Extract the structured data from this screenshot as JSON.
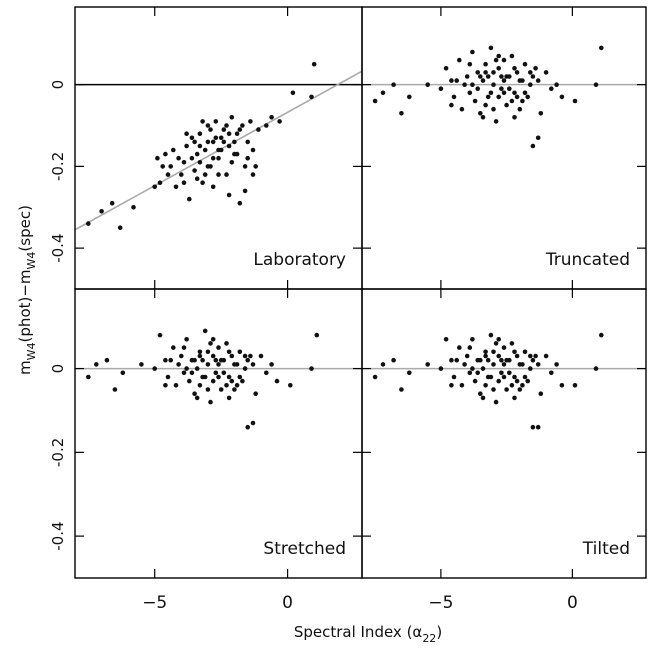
{
  "figure": {
    "xlabel": "Spectral Index (α",
    "xlabel_sub": "22",
    "xlabel_close": ")",
    "ylabel_parts": [
      "m",
      "W4",
      "(phot)−m",
      "W4",
      "(spec)"
    ]
  },
  "chart_data": [
    {
      "type": "scatter",
      "panel": "Laboratory",
      "label": "Laboratory",
      "xlim": [
        -8,
        2.8
      ],
      "ylim": [
        -0.5,
        0.19
      ],
      "xticks": [],
      "yticks": [
        0,
        -0.2,
        -0.4
      ],
      "ytick_labels": [
        "0",
        "-0.2",
        "-0.4"
      ],
      "hline": {
        "y": 0,
        "color": "#000000"
      },
      "fit_line": {
        "x": [
          -8,
          2.8
        ],
        "y": [
          -0.355,
          0.033
        ],
        "color": "#aaaaaa"
      },
      "points": [
        [
          -7.5,
          -0.34
        ],
        [
          -7.0,
          -0.31
        ],
        [
          -6.6,
          -0.29
        ],
        [
          -6.3,
          -0.35
        ],
        [
          -5.8,
          -0.3
        ],
        [
          -5.0,
          -0.25
        ],
        [
          -4.8,
          -0.24
        ],
        [
          -4.7,
          -0.2
        ],
        [
          -4.9,
          -0.18
        ],
        [
          -4.5,
          -0.22
        ],
        [
          -4.3,
          -0.16
        ],
        [
          -4.2,
          -0.25
        ],
        [
          -4.0,
          -0.22
        ],
        [
          -3.9,
          -0.19
        ],
        [
          -3.8,
          -0.15
        ],
        [
          -3.7,
          -0.28
        ],
        [
          -3.6,
          -0.13
        ],
        [
          -3.5,
          -0.21
        ],
        [
          -3.4,
          -0.17
        ],
        [
          -3.3,
          -0.12
        ],
        [
          -3.2,
          -0.24
        ],
        [
          -3.1,
          -0.16
        ],
        [
          -3.0,
          -0.1
        ],
        [
          -2.9,
          -0.2
        ],
        [
          -2.8,
          -0.14
        ],
        [
          -2.7,
          -0.09
        ],
        [
          -2.6,
          -0.18
        ],
        [
          -2.5,
          -0.13
        ],
        [
          -2.4,
          -0.11
        ],
        [
          -2.3,
          -0.22
        ],
        [
          -2.2,
          -0.15
        ],
        [
          -2.1,
          -0.08
        ],
        [
          -2.0,
          -0.17
        ],
        [
          -1.9,
          -0.12
        ],
        [
          -1.8,
          -0.29
        ],
        [
          -1.7,
          -0.1
        ],
        [
          -1.6,
          -0.26
        ],
        [
          -1.5,
          -0.14
        ],
        [
          -1.4,
          -0.09
        ],
        [
          -1.3,
          -0.16
        ],
        [
          -1.2,
          -0.2
        ],
        [
          -1.1,
          -0.11
        ],
        [
          -0.8,
          -0.1
        ],
        [
          -0.6,
          -0.08
        ],
        [
          -0.3,
          -0.09
        ],
        [
          0.2,
          -0.02
        ],
        [
          0.9,
          -0.03
        ],
        [
          1.0,
          0.05
        ],
        [
          -3.0,
          -0.14
        ],
        [
          -2.8,
          -0.18
        ],
        [
          -3.5,
          -0.14
        ],
        [
          -4.1,
          -0.18
        ],
        [
          -3.3,
          -0.19
        ],
        [
          -2.5,
          -0.16
        ],
        [
          -2.2,
          -0.12
        ],
        [
          -2.6,
          -0.22
        ],
        [
          -3.9,
          -0.24
        ],
        [
          -1.6,
          -0.2
        ],
        [
          -2.9,
          -0.11
        ],
        [
          -3.2,
          -0.09
        ],
        [
          -1.9,
          -0.17
        ],
        [
          -2.4,
          -0.14
        ],
        [
          -3.6,
          -0.18
        ],
        [
          -4.4,
          -0.2
        ],
        [
          -2.7,
          -0.13
        ],
        [
          -2.1,
          -0.19
        ],
        [
          -3.8,
          -0.12
        ],
        [
          -1.5,
          -0.18
        ],
        [
          -2.3,
          -0.1
        ],
        [
          -3.1,
          -0.22
        ],
        [
          -2.0,
          -0.14
        ],
        [
          -3.4,
          -0.23
        ],
        [
          -1.8,
          -0.11
        ],
        [
          -2.8,
          -0.25
        ],
        [
          -3.0,
          -0.2
        ],
        [
          -3.3,
          -0.15
        ],
        [
          -2.6,
          -0.16
        ],
        [
          -4.6,
          -0.17
        ],
        [
          -1.3,
          -0.22
        ],
        [
          -2.2,
          -0.27
        ]
      ]
    },
    {
      "type": "scatter",
      "panel": "Truncated",
      "label": "Truncated",
      "xlim": [
        -8,
        2.8
      ],
      "ylim": [
        -0.5,
        0.19
      ],
      "xticks": [],
      "yticks": [
        0,
        -0.2,
        -0.4
      ],
      "ytick_labels": [],
      "hline": {
        "y": 0,
        "color": "#aaaaaa"
      },
      "points": [
        [
          -7.5,
          -0.04
        ],
        [
          -7.2,
          -0.02
        ],
        [
          -6.8,
          0.0
        ],
        [
          -6.5,
          -0.07
        ],
        [
          -6.2,
          -0.03
        ],
        [
          -5.5,
          0.0
        ],
        [
          -5.0,
          -0.01
        ],
        [
          -4.8,
          0.04
        ],
        [
          -4.6,
          0.01
        ],
        [
          -4.5,
          -0.03
        ],
        [
          -4.3,
          0.06
        ],
        [
          -4.2,
          -0.06
        ],
        [
          -4.0,
          0.02
        ],
        [
          -3.9,
          -0.02
        ],
        [
          -3.8,
          0.08
        ],
        [
          -3.7,
          -0.04
        ],
        [
          -3.6,
          0.03
        ],
        [
          -3.5,
          -0.07
        ],
        [
          -3.4,
          0.01
        ],
        [
          -3.3,
          0.05
        ],
        [
          -3.2,
          -0.03
        ],
        [
          -3.1,
          0.09
        ],
        [
          -3.0,
          0.0
        ],
        [
          -2.9,
          -0.09
        ],
        [
          -2.8,
          0.04
        ],
        [
          -2.7,
          -0.01
        ],
        [
          -2.6,
          0.06
        ],
        [
          -2.5,
          -0.05
        ],
        [
          -2.4,
          0.02
        ],
        [
          -2.3,
          0.07
        ],
        [
          -2.2,
          -0.02
        ],
        [
          -2.1,
          0.03
        ],
        [
          -2.0,
          -0.06
        ],
        [
          -1.9,
          0.01
        ],
        [
          -1.8,
          0.05
        ],
        [
          -1.7,
          -0.03
        ],
        [
          -1.6,
          0.0
        ],
        [
          -1.5,
          -0.15
        ],
        [
          -1.4,
          0.04
        ],
        [
          -1.3,
          -0.13
        ],
        [
          -1.2,
          -0.07
        ],
        [
          -1.0,
          0.03
        ],
        [
          -0.8,
          -0.01
        ],
        [
          -0.6,
          0.0
        ],
        [
          -0.4,
          -0.03
        ],
        [
          0.1,
          -0.04
        ],
        [
          0.9,
          0.0
        ],
        [
          1.1,
          0.09
        ],
        [
          -3.0,
          0.03
        ],
        [
          -2.8,
          -0.03
        ],
        [
          -3.5,
          0.02
        ],
        [
          -4.1,
          0.0
        ],
        [
          -3.3,
          -0.05
        ],
        [
          -2.5,
          0.02
        ],
        [
          -2.2,
          0.04
        ],
        [
          -2.6,
          -0.02
        ],
        [
          -3.9,
          0.05
        ],
        [
          -1.6,
          0.03
        ],
        [
          -2.9,
          0.06
        ],
        [
          -3.2,
          0.02
        ],
        [
          -1.9,
          -0.04
        ],
        [
          -2.4,
          -0.01
        ],
        [
          -3.6,
          -0.01
        ],
        [
          -4.4,
          0.01
        ],
        [
          -2.7,
          0.02
        ],
        [
          -2.1,
          -0.03
        ],
        [
          -3.8,
          0.0
        ],
        [
          -1.5,
          0.02
        ],
        [
          -2.3,
          -0.04
        ],
        [
          -3.1,
          -0.02
        ],
        [
          -2.0,
          0.01
        ],
        [
          -3.4,
          -0.08
        ],
        [
          -1.8,
          -0.02
        ],
        [
          -2.8,
          0.07
        ],
        [
          -3.0,
          -0.06
        ],
        [
          -3.3,
          0.03
        ],
        [
          -2.6,
          0.01
        ],
        [
          -4.6,
          -0.05
        ],
        [
          -1.3,
          0.01
        ],
        [
          -2.2,
          -0.08
        ]
      ]
    },
    {
      "type": "scatter",
      "panel": "Stretched",
      "label": "Stretched",
      "xlim": [
        -8,
        2.8
      ],
      "ylim": [
        -0.5,
        0.19
      ],
      "xticks": [
        -5,
        0
      ],
      "xtick_labels": [
        "−5",
        "0"
      ],
      "yticks": [
        0,
        -0.2,
        -0.4
      ],
      "ytick_labels": [
        "0",
        "-0.2",
        "-0.4"
      ],
      "hline": {
        "y": 0,
        "color": "#aaaaaa"
      },
      "points": [
        [
          -7.5,
          -0.02
        ],
        [
          -7.2,
          0.01
        ],
        [
          -6.8,
          0.02
        ],
        [
          -6.5,
          -0.05
        ],
        [
          -6.2,
          -0.01
        ],
        [
          -5.5,
          0.01
        ],
        [
          -5.0,
          0.0
        ],
        [
          -4.8,
          0.08
        ],
        [
          -4.6,
          0.02
        ],
        [
          -4.5,
          -0.02
        ],
        [
          -4.3,
          0.05
        ],
        [
          -4.2,
          -0.04
        ],
        [
          -4.0,
          0.03
        ],
        [
          -3.9,
          -0.01
        ],
        [
          -3.8,
          0.07
        ],
        [
          -3.7,
          -0.03
        ],
        [
          -3.6,
          0.02
        ],
        [
          -3.5,
          -0.06
        ],
        [
          -3.4,
          0.0
        ],
        [
          -3.3,
          0.04
        ],
        [
          -3.2,
          -0.02
        ],
        [
          -3.1,
          0.09
        ],
        [
          -3.0,
          0.01
        ],
        [
          -2.9,
          -0.08
        ],
        [
          -2.8,
          0.03
        ],
        [
          -2.7,
          -0.01
        ],
        [
          -2.6,
          0.05
        ],
        [
          -2.5,
          -0.05
        ],
        [
          -2.4,
          0.02
        ],
        [
          -2.3,
          0.06
        ],
        [
          -2.2,
          -0.02
        ],
        [
          -2.1,
          0.03
        ],
        [
          -2.0,
          -0.05
        ],
        [
          -1.9,
          0.01
        ],
        [
          -1.8,
          0.04
        ],
        [
          -1.7,
          -0.03
        ],
        [
          -1.6,
          0.0
        ],
        [
          -1.5,
          -0.14
        ],
        [
          -1.4,
          0.03
        ],
        [
          -1.3,
          -0.13
        ],
        [
          -1.2,
          -0.06
        ],
        [
          -1.0,
          0.03
        ],
        [
          -0.8,
          -0.01
        ],
        [
          -0.6,
          0.01
        ],
        [
          -0.4,
          -0.03
        ],
        [
          0.1,
          -0.04
        ],
        [
          0.9,
          0.0
        ],
        [
          1.1,
          0.08
        ],
        [
          -3.0,
          0.04
        ],
        [
          -2.8,
          -0.03
        ],
        [
          -3.5,
          0.02
        ],
        [
          -4.1,
          0.01
        ],
        [
          -3.3,
          -0.04
        ],
        [
          -2.5,
          0.02
        ],
        [
          -2.2,
          0.04
        ],
        [
          -2.6,
          -0.02
        ],
        [
          -3.9,
          0.05
        ],
        [
          -1.6,
          0.03
        ],
        [
          -2.9,
          0.06
        ],
        [
          -3.2,
          0.02
        ],
        [
          -1.9,
          -0.04
        ],
        [
          -2.4,
          -0.01
        ],
        [
          -3.6,
          -0.01
        ],
        [
          -4.4,
          0.02
        ],
        [
          -2.7,
          0.02
        ],
        [
          -2.1,
          -0.03
        ],
        [
          -3.8,
          0.0
        ],
        [
          -1.5,
          0.02
        ],
        [
          -2.3,
          -0.04
        ],
        [
          -3.1,
          -0.02
        ],
        [
          -2.0,
          0.01
        ],
        [
          -3.4,
          -0.07
        ],
        [
          -1.8,
          -0.02
        ],
        [
          -2.8,
          0.07
        ],
        [
          -3.0,
          -0.05
        ],
        [
          -3.3,
          0.03
        ],
        [
          -2.6,
          0.01
        ],
        [
          -4.6,
          -0.04
        ],
        [
          -1.3,
          0.01
        ],
        [
          -2.2,
          -0.07
        ]
      ]
    },
    {
      "type": "scatter",
      "panel": "Tilted",
      "label": "Tilted",
      "xlim": [
        -8,
        2.8
      ],
      "ylim": [
        -0.5,
        0.19
      ],
      "xticks": [
        -5,
        0
      ],
      "xtick_labels": [
        "−5",
        "0"
      ],
      "yticks": [
        0,
        -0.2,
        -0.4
      ],
      "ytick_labels": [],
      "hline": {
        "y": 0,
        "color": "#aaaaaa"
      },
      "points": [
        [
          -7.5,
          -0.02
        ],
        [
          -7.2,
          0.01
        ],
        [
          -6.8,
          0.02
        ],
        [
          -6.5,
          -0.05
        ],
        [
          -6.2,
          -0.01
        ],
        [
          -5.5,
          0.01
        ],
        [
          -5.0,
          0.0
        ],
        [
          -4.8,
          0.07
        ],
        [
          -4.6,
          0.02
        ],
        [
          -4.5,
          -0.02
        ],
        [
          -4.3,
          0.05
        ],
        [
          -4.2,
          -0.04
        ],
        [
          -4.0,
          0.03
        ],
        [
          -3.9,
          -0.01
        ],
        [
          -3.8,
          0.07
        ],
        [
          -3.7,
          -0.03
        ],
        [
          -3.6,
          0.02
        ],
        [
          -3.5,
          -0.06
        ],
        [
          -3.4,
          0.0
        ],
        [
          -3.3,
          0.04
        ],
        [
          -3.2,
          -0.02
        ],
        [
          -3.1,
          0.08
        ],
        [
          -3.0,
          0.01
        ],
        [
          -2.9,
          -0.08
        ],
        [
          -2.8,
          0.03
        ],
        [
          -2.7,
          -0.01
        ],
        [
          -2.6,
          0.05
        ],
        [
          -2.5,
          -0.05
        ],
        [
          -2.4,
          0.02
        ],
        [
          -2.3,
          0.06
        ],
        [
          -2.2,
          -0.02
        ],
        [
          -2.1,
          0.03
        ],
        [
          -2.0,
          -0.05
        ],
        [
          -1.9,
          0.01
        ],
        [
          -1.8,
          0.04
        ],
        [
          -1.7,
          -0.03
        ],
        [
          -1.6,
          0.0
        ],
        [
          -1.5,
          -0.14
        ],
        [
          -1.4,
          0.03
        ],
        [
          -1.3,
          -0.14
        ],
        [
          -1.2,
          -0.06
        ],
        [
          -1.0,
          0.03
        ],
        [
          -0.8,
          -0.01
        ],
        [
          -0.6,
          0.01
        ],
        [
          -0.4,
          -0.04
        ],
        [
          0.1,
          -0.04
        ],
        [
          0.9,
          0.0
        ],
        [
          1.1,
          0.08
        ],
        [
          -3.0,
          0.04
        ],
        [
          -2.8,
          -0.03
        ],
        [
          -3.5,
          0.02
        ],
        [
          -4.1,
          0.01
        ],
        [
          -3.3,
          -0.04
        ],
        [
          -2.5,
          0.02
        ],
        [
          -2.2,
          0.04
        ],
        [
          -2.6,
          -0.02
        ],
        [
          -3.9,
          0.05
        ],
        [
          -1.6,
          0.03
        ],
        [
          -2.9,
          0.06
        ],
        [
          -3.2,
          0.02
        ],
        [
          -1.9,
          -0.04
        ],
        [
          -2.4,
          -0.01
        ],
        [
          -3.6,
          -0.01
        ],
        [
          -4.4,
          0.02
        ],
        [
          -2.7,
          0.02
        ],
        [
          -2.1,
          -0.03
        ],
        [
          -3.8,
          0.0
        ],
        [
          -1.5,
          0.02
        ],
        [
          -2.3,
          -0.04
        ],
        [
          -3.1,
          -0.02
        ],
        [
          -2.0,
          0.01
        ],
        [
          -3.4,
          -0.07
        ],
        [
          -1.8,
          -0.02
        ],
        [
          -2.8,
          0.07
        ],
        [
          -3.0,
          -0.05
        ],
        [
          -3.3,
          0.03
        ],
        [
          -2.6,
          0.01
        ],
        [
          -4.6,
          -0.04
        ],
        [
          -1.3,
          0.01
        ],
        [
          -2.2,
          -0.07
        ]
      ]
    }
  ]
}
